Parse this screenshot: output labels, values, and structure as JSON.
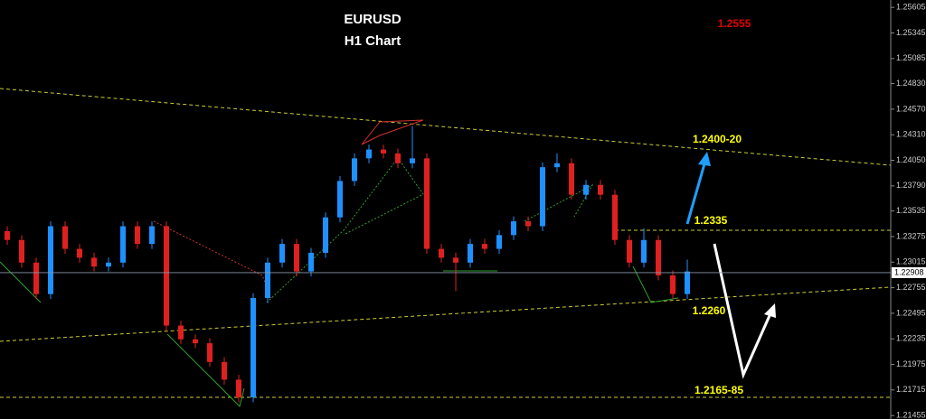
{
  "chart_data": {
    "type": "candlestick",
    "title": "EURUSD",
    "subtitle": "H1 Chart",
    "open": [
      1.2333,
      1.2324,
      1.2301,
      1.2269,
      1.2338,
      1.2315,
      1.2306,
      1.2297,
      1.2301,
      1.2338,
      1.232,
      1.2338,
      1.2237,
      1.2223,
      1.2219,
      1.22,
      1.2182,
      1.2164,
      1.2265,
      1.2301,
      1.232,
      1.2292,
      1.2311,
      1.2347,
      1.2384,
      1.2407,
      1.2416,
      1.2412,
      1.2402,
      1.2407,
      1.2315,
      1.2306,
      1.2301,
      1.232,
      1.2315,
      1.2329,
      1.2343,
      1.2338,
      1.2398,
      1.2402,
      1.237,
      1.238,
      1.237,
      1.2324,
      1.2301,
      1.2324,
      1.2288,
      1.2269
    ],
    "high": [
      1.2338,
      1.2329,
      1.2306,
      1.2343,
      1.2343,
      1.232,
      1.2311,
      1.2306,
      1.2343,
      1.2343,
      1.2343,
      1.2343,
      1.2242,
      1.2228,
      1.2224,
      1.2205,
      1.2187,
      1.227,
      1.2306,
      1.2325,
      1.2325,
      1.2316,
      1.2352,
      1.2389,
      1.2412,
      1.2421,
      1.2421,
      1.2417,
      1.244,
      1.2412,
      1.232,
      1.2311,
      1.2325,
      1.2325,
      1.2334,
      1.2348,
      1.2348,
      1.2403,
      1.2412,
      1.2407,
      1.2385,
      1.2385,
      1.2375,
      1.2329,
      1.2336,
      1.2329,
      1.2293,
      1.2304
    ],
    "low": [
      1.2319,
      1.2296,
      1.2264,
      1.2264,
      1.231,
      1.2301,
      1.2292,
      1.2292,
      1.2296,
      1.2315,
      1.2315,
      1.2232,
      1.2218,
      1.2214,
      1.2195,
      1.2177,
      1.2159,
      1.2159,
      1.226,
      1.2296,
      1.2287,
      1.2287,
      1.2306,
      1.2342,
      1.2379,
      1.2402,
      1.2407,
      1.2397,
      1.2397,
      1.231,
      1.2301,
      1.2272,
      1.2296,
      1.231,
      1.231,
      1.2324,
      1.2333,
      1.2333,
      1.2393,
      1.2365,
      1.2365,
      1.2365,
      1.2319,
      1.2296,
      1.2296,
      1.2283,
      1.2264,
      1.2264
    ],
    "close": [
      1.2324,
      1.2301,
      1.2269,
      1.2338,
      1.2315,
      1.2306,
      1.2297,
      1.2301,
      1.2338,
      1.232,
      1.2338,
      1.2237,
      1.2223,
      1.2219,
      1.22,
      1.2182,
      1.2164,
      1.2265,
      1.2301,
      1.232,
      1.2292,
      1.2311,
      1.2347,
      1.2384,
      1.2407,
      1.2416,
      1.2412,
      1.2402,
      1.2407,
      1.2315,
      1.2306,
      1.2301,
      1.232,
      1.2315,
      1.2329,
      1.2343,
      1.2338,
      1.2398,
      1.2402,
      1.237,
      1.238,
      1.237,
      1.2324,
      1.2301,
      1.2324,
      1.2288,
      1.2269,
      1.2292
    ],
    "up_color": "#1e90ff",
    "down_color": "#e02020",
    "last_price": 1.22908,
    "ylim": [
      1.2142,
      1.2568
    ],
    "yticks": [
      1.25605,
      1.25345,
      1.25085,
      {
        "value": 1.2483,
        "label": "1.24830"
      },
      {
        "value": 1.2457,
        "label": "1.24570"
      },
      {
        "value": 1.2431,
        "label": "1.24310"
      },
      {
        "value": 1.2405,
        "label": "1.24050"
      },
      {
        "value": 1.2379,
        "label": "1.23790"
      },
      1.23535,
      1.23275,
      1.23015,
      1.22755,
      1.22495,
      1.22235,
      1.21975,
      1.21715,
      1.21455
    ],
    "annotations": [
      {
        "text": "1.2555",
        "color": "#e00000"
      },
      {
        "text": "1.2400-20",
        "color": "#ffff00"
      },
      {
        "text": "1.2335",
        "color": "#ffff00"
      },
      {
        "text": "1.2260",
        "color": "#ffff00"
      },
      {
        "text": "1.2165-85",
        "color": "#ffff00"
      }
    ]
  }
}
